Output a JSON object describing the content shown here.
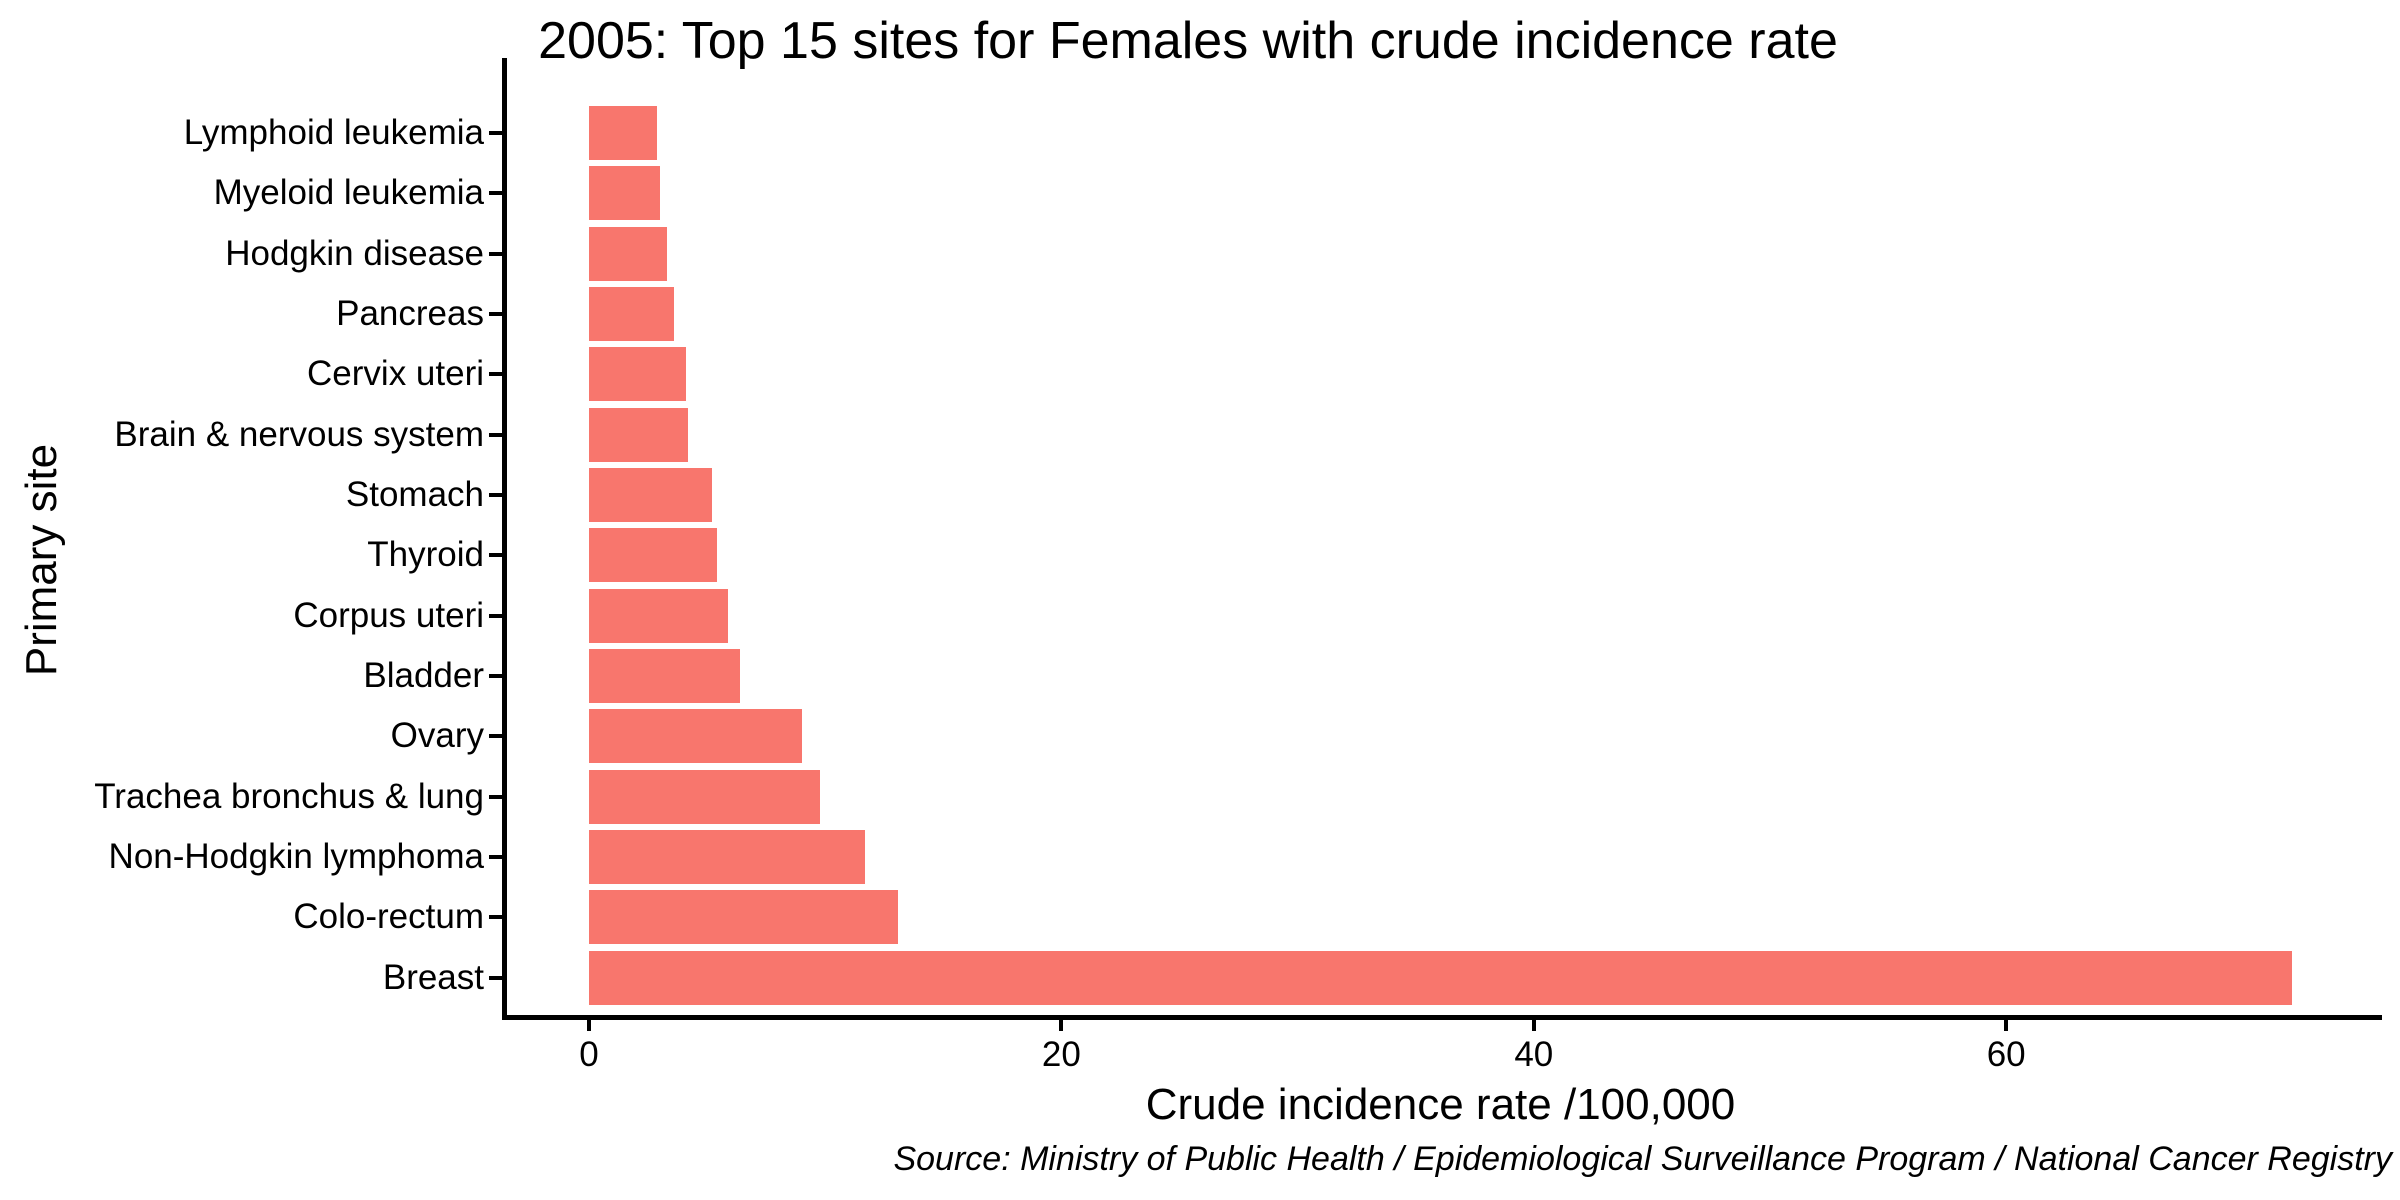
{
  "chart_data": {
    "type": "bar",
    "orientation": "horizontal",
    "title": "2005: Top 15 sites for Females with crude incidence rate",
    "xlabel": "Crude incidence rate /100,000",
    "ylabel": "Primary site",
    "source": "Source: Ministry of Public Health / Epidemiological Surveillance Program / National Cancer Registry",
    "categories": [
      "Lymphoid leukemia",
      "Myeloid leukemia",
      "Hodgkin disease",
      "Pancreas",
      "Cervix uteri",
      "Brain & nervous system",
      "Stomach",
      "Thyroid",
      "Corpus uteri",
      "Bladder",
      "Ovary",
      "Trachea bronchus & lung",
      "Non-Hodgkin lymphoma",
      "Colo-rectum",
      "Breast"
    ],
    "values": [
      2.9,
      3.0,
      3.3,
      3.6,
      4.1,
      4.2,
      5.2,
      5.4,
      5.9,
      6.4,
      9.0,
      9.8,
      11.7,
      13.1,
      72.1
    ],
    "x_ticks": [
      0,
      20,
      40,
      60
    ],
    "xlim": [
      0,
      75.7
    ],
    "grid": false,
    "legend": false,
    "bar_color": "#F8766D",
    "axis_color": "#000000",
    "background_color": "#FFFFFF"
  }
}
